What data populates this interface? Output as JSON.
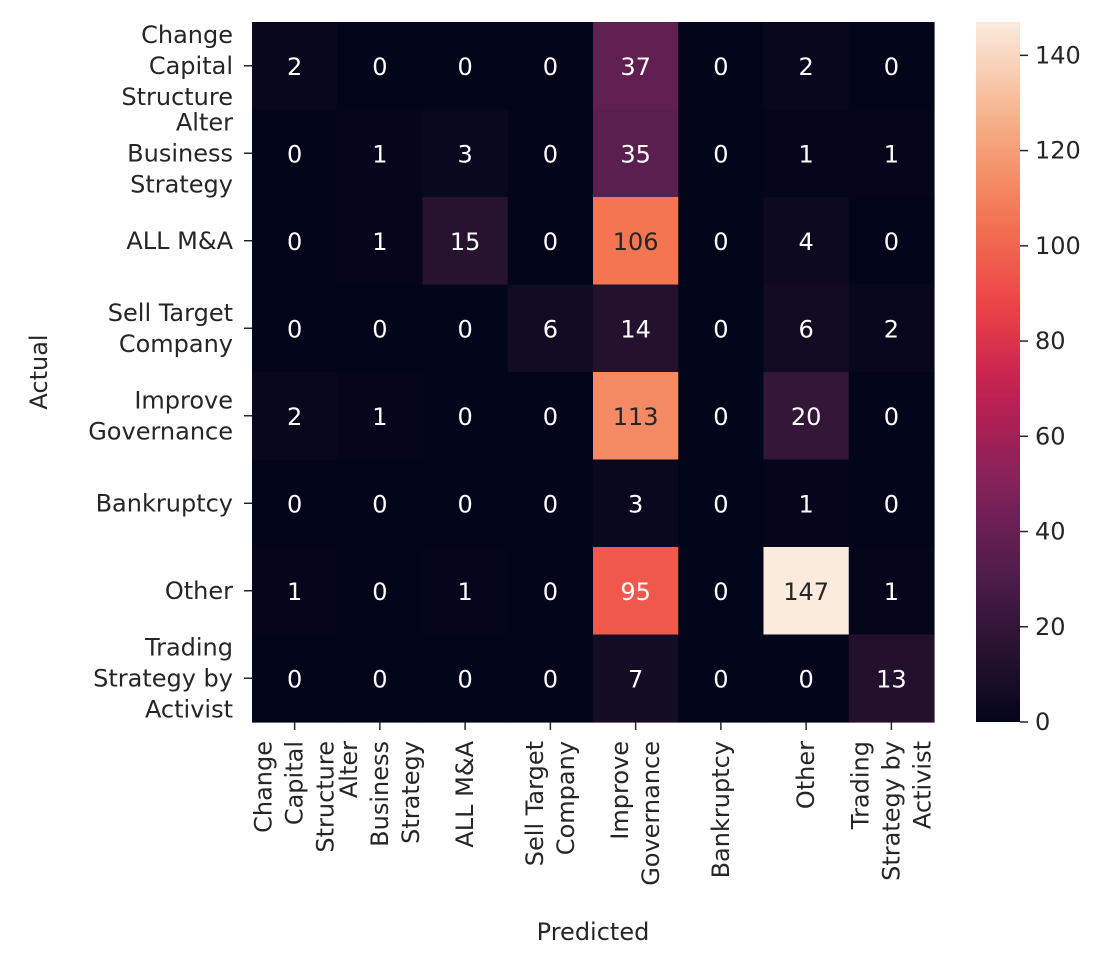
{
  "chart_data": {
    "type": "heatmap",
    "title": "",
    "xlabel": "Predicted",
    "ylabel": "Actual",
    "x_categories": [
      [
        "Change",
        "Capital",
        "Structure"
      ],
      [
        "Alter",
        "Business",
        "Strategy"
      ],
      [
        "ALL M&A"
      ],
      [
        "Sell Target",
        "Company"
      ],
      [
        "Improve",
        "Governance"
      ],
      [
        "Bankruptcy"
      ],
      [
        "Other"
      ],
      [
        "Trading",
        "Strategy by",
        "Activist"
      ]
    ],
    "y_categories": [
      [
        "Change",
        "Capital",
        "Structure"
      ],
      [
        "Alter",
        "Business",
        "Strategy"
      ],
      [
        "ALL M&A"
      ],
      [
        "Sell Target",
        "Company"
      ],
      [
        "Improve",
        "Governance"
      ],
      [
        "Bankruptcy"
      ],
      [
        "Other"
      ],
      [
        "Trading",
        "Strategy by",
        "Activist"
      ]
    ],
    "values": [
      [
        2,
        0,
        0,
        0,
        37,
        0,
        2,
        0
      ],
      [
        0,
        1,
        3,
        0,
        35,
        0,
        1,
        1
      ],
      [
        0,
        1,
        15,
        0,
        106,
        0,
        4,
        0
      ],
      [
        0,
        0,
        0,
        6,
        14,
        0,
        6,
        2
      ],
      [
        2,
        1,
        0,
        0,
        113,
        0,
        20,
        0
      ],
      [
        0,
        0,
        0,
        0,
        3,
        0,
        1,
        0
      ],
      [
        1,
        0,
        1,
        0,
        95,
        0,
        147,
        1
      ],
      [
        0,
        0,
        0,
        0,
        7,
        0,
        0,
        13
      ]
    ],
    "colorbar": {
      "vmin": 0,
      "vmax": 147,
      "ticks": [
        0,
        20,
        40,
        60,
        80,
        100,
        120,
        140
      ],
      "colormap": "rocket"
    },
    "text_color_dark_cells": "#ffffff",
    "text_color_light_cells": "#262626"
  }
}
